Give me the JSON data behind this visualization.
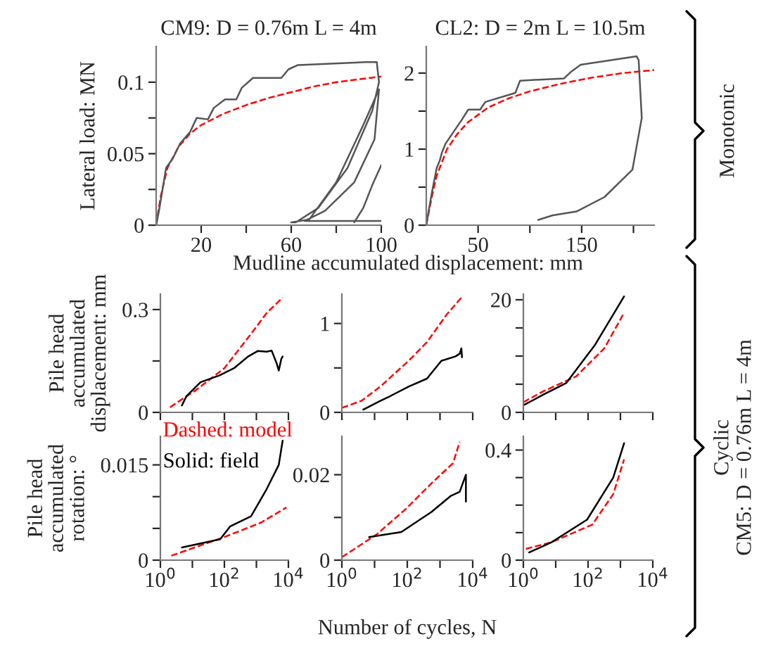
{
  "chart_data": [
    {
      "type": "line",
      "title": "CM9: D = 0.76m L = 4m",
      "xlabel": "Mudline accumulated displacement: mm",
      "ylabel": "Lateral load: MN",
      "xlim": [
        0,
        100
      ],
      "xticks": [
        {
          "value": 20,
          "label": "20"
        },
        {
          "value": 40,
          "label": null
        },
        {
          "value": 60,
          "label": "60"
        },
        {
          "value": 80,
          "label": null
        },
        {
          "value": 100,
          "label": "100"
        }
      ],
      "ylim": [
        0,
        0.125
      ],
      "yticks": [
        0,
        {
          "value": 0.025,
          "label": null
        },
        0.05,
        {
          "value": 0.075,
          "label": null
        },
        0.1
      ],
      "grid": false,
      "legend": false,
      "series": [
        {
          "color": "#ff0000",
          "line_style": "dashed",
          "x": [
            0,
            2,
            5,
            10,
            15,
            20,
            30,
            40,
            50,
            60,
            70,
            80,
            90,
            100
          ],
          "values": [
            0,
            0.02,
            0.04,
            0.055,
            0.064,
            0.07,
            0.078,
            0.084,
            0.089,
            0.093,
            0.097,
            0.1,
            0.102,
            0.104
          ]
        },
        {
          "color": "#555555",
          "line_style": "solid",
          "x": [
            0,
            1.25,
            4.4,
            7.5,
            10.6,
            15,
            18,
            23,
            25.6,
            30.6,
            35.6,
            38,
            43,
            55.6,
            58.8,
            63,
            93,
            98,
            99,
            96,
            85,
            72,
            62,
            60,
            68,
            80,
            92,
            99,
            97,
            88,
            75,
            66,
            100
          ],
          "values": [
            0,
            0.01,
            0.04,
            0.047,
            0.057,
            0.065,
            0.075,
            0.074,
            0.082,
            0.088,
            0.088,
            0.096,
            0.103,
            0.103,
            0.109,
            0.112,
            0.114,
            0.114,
            0.1,
            0.08,
            0.04,
            0.012,
            0.002,
            0.002,
            0.004,
            0.03,
            0.07,
            0.095,
            0.06,
            0.03,
            0.01,
            0.003,
            0.003
          ]
        },
        {
          "color": "#555555",
          "line_style": "solid",
          "x": [
            88,
            92,
            96,
            100
          ],
          "values": [
            0.002,
            0.012,
            0.028,
            0.042
          ]
        }
      ]
    },
    {
      "type": "line",
      "title": "CL2: D = 2m L = 10.5m",
      "xlim": [
        0,
        220
      ],
      "xticks": [
        {
          "value": 50,
          "label": "50"
        },
        {
          "value": 100,
          "label": null
        },
        {
          "value": 150,
          "label": "150"
        },
        {
          "value": 200,
          "label": null
        }
      ],
      "ylim": [
        0,
        2.35
      ],
      "yticks": [
        0,
        {
          "value": 0.5,
          "label": null
        },
        1,
        {
          "value": 1.5,
          "label": null
        },
        2
      ],
      "grid": false,
      "legend": false,
      "annotations": [
        "Monotonic"
      ],
      "series": [
        {
          "color": "#ff0000",
          "line_style": "dashed",
          "x": [
            0,
            5,
            10,
            20,
            30,
            40,
            60,
            80,
            100,
            130,
            160,
            190,
            220
          ],
          "values": [
            0,
            0.35,
            0.65,
            1.0,
            1.2,
            1.35,
            1.55,
            1.67,
            1.76,
            1.86,
            1.94,
            2.0,
            2.04
          ]
        },
        {
          "color": "#555555",
          "line_style": "solid",
          "x": [
            0,
            5,
            10,
            13,
            15,
            18.5,
            23,
            27.5,
            34,
            40.5,
            52,
            57,
            86,
            90.5,
            133,
            140,
            149,
            203,
            205,
            208,
            199,
            172,
            145,
            122,
            108
          ],
          "values": [
            0,
            0.4,
            0.75,
            0.85,
            0.95,
            1.07,
            1.16,
            1.25,
            1.38,
            1.52,
            1.52,
            1.62,
            1.74,
            1.9,
            1.93,
            2.02,
            2.11,
            2.22,
            2.17,
            1.41,
            0.73,
            0.37,
            0.18,
            0.13,
            0.07
          ]
        }
      ]
    },
    {
      "type": "line",
      "ylabel": "Pile head\naccumulated\ndisplacement: mm",
      "log": "x",
      "xlim": [
        1,
        10000
      ],
      "xticks": [
        {
          "value": 1,
          "label": null
        },
        {
          "value": 10,
          "label": null
        },
        {
          "value": 100,
          "label": null
        },
        {
          "value": 1000,
          "label": null
        },
        {
          "value": 10000,
          "label": null
        }
      ],
      "ylim": [
        0,
        0.345
      ],
      "yticks": [
        0,
        {
          "value": 0.15,
          "label": null
        },
        0.3
      ],
      "tick_labels": "y",
      "grid": false,
      "legend": false,
      "series": [
        {
          "color": "#ff0000",
          "line_style": "dashed",
          "x": [
            2,
            13,
            100,
            550,
            2100,
            6600
          ],
          "values": [
            0.015,
            0.065,
            0.129,
            0.218,
            0.29,
            0.335
          ]
        },
        {
          "color": "#000000",
          "line_style": "solid",
          "x": [
            4.7,
            6.5,
            18,
            71,
            200,
            550,
            1100,
            2100,
            3000,
            4300,
            5000,
            6000,
            6600
          ],
          "values": [
            0.02,
            0.047,
            0.088,
            0.108,
            0.129,
            0.163,
            0.179,
            0.177,
            0.18,
            0.143,
            0.122,
            0.156,
            0.163
          ]
        }
      ]
    },
    {
      "type": "line",
      "log": "x",
      "xlim": [
        1,
        10000
      ],
      "xticks": [
        {
          "value": 1,
          "label": null
        },
        {
          "value": 10,
          "label": null
        },
        {
          "value": 100,
          "label": null
        },
        {
          "value": 1000,
          "label": null
        },
        {
          "value": 10000,
          "label": null
        }
      ],
      "ylim": [
        0,
        1.33
      ],
      "yticks": [
        0,
        {
          "value": 0.5,
          "label": null
        },
        1
      ],
      "tick_labels": "y",
      "grid": false,
      "legend": false,
      "series": [
        {
          "color": "#ff0000",
          "line_style": "dashed",
          "x": [
            1,
            4,
            15,
            110,
            400,
            1600,
            5000
          ],
          "values": [
            0.05,
            0.13,
            0.29,
            0.58,
            0.79,
            1.1,
            1.31
          ]
        },
        {
          "color": "#000000",
          "line_style": "solid",
          "x": [
            4.5,
            15,
            29,
            110,
            400,
            1100,
            3000,
            4000,
            4500,
            4700
          ],
          "values": [
            0.03,
            0.13,
            0.18,
            0.29,
            0.38,
            0.58,
            0.63,
            0.66,
            0.72,
            0.62
          ]
        }
      ]
    },
    {
      "type": "line",
      "log": "x",
      "xlim": [
        1,
        10000
      ],
      "xticks": [
        {
          "value": 1,
          "label": null
        },
        {
          "value": 10,
          "label": null
        },
        {
          "value": 100,
          "label": null
        },
        {
          "value": 1000,
          "label": null
        },
        {
          "value": 10000,
          "label": null
        }
      ],
      "ylim": [
        0,
        21
      ],
      "yticks": [
        0,
        {
          "value": 5,
          "label": null
        },
        {
          "value": 10,
          "label": null
        },
        {
          "value": 15,
          "label": null
        },
        20
      ],
      "tick_labels": "y",
      "grid": false,
      "legend": false,
      "annotations": [
        "Cyclic\nCM5: D = 0.76m L = 4m"
      ],
      "series": [
        {
          "color": "#ff0000",
          "line_style": "dashed",
          "x": [
            1,
            4,
            43,
            320,
            1300
          ],
          "values": [
            1.8,
            3.7,
            6.4,
            11.4,
            17.7
          ]
        },
        {
          "color": "#000000",
          "line_style": "solid",
          "x": [
            1,
            4,
            21,
            160,
            1300
          ],
          "values": [
            1.25,
            3.1,
            5.2,
            11.9,
            20.6
          ]
        }
      ]
    },
    {
      "type": "line",
      "ylabel": "Pile head\naccumulated\nrotation: °",
      "log": "x",
      "xlim": [
        1,
        10000
      ],
      "xticks": [
        {
          "value": 1,
          "label": "10$^{0}$"
        },
        {
          "value": 10,
          "label": null
        },
        {
          "value": 100,
          "label": "10$^{2}$"
        },
        {
          "value": 1000,
          "label": null
        },
        {
          "value": 10000,
          "label": "10$^{4}$"
        }
      ],
      "ylim": [
        0,
        0.0195
      ],
      "yticks": [
        0,
        {
          "value": 0.005,
          "label": null
        },
        {
          "value": 0.01,
          "label": null
        },
        0.015
      ],
      "grid": false,
      "legend": false,
      "annotations": [
        "Dashed: model",
        "Solid: field"
      ],
      "series": [
        {
          "color": "#ff0000",
          "line_style": "dashed",
          "x": [
            2.2,
            107,
            1380,
            8700
          ],
          "values": [
            0.0007,
            0.0037,
            0.0059,
            0.0083
          ]
        },
        {
          "color": "#000000",
          "line_style": "solid",
          "x": [
            4.7,
            74,
            150,
            680,
            2000,
            5000,
            6600
          ],
          "values": [
            0.002,
            0.0033,
            0.0053,
            0.0069,
            0.011,
            0.015,
            0.0188
          ]
        }
      ]
    },
    {
      "type": "line",
      "xlabel": "Number of cycles, N",
      "log": "x",
      "xlim": [
        1,
        10000
      ],
      "xticks": [
        {
          "value": 1,
          "label": "10$^{0}$"
        },
        {
          "value": 10,
          "label": null
        },
        {
          "value": 100,
          "label": "10$^{2}$"
        },
        {
          "value": 1000,
          "label": null
        },
        {
          "value": 10000,
          "label": "10$^{4}$"
        }
      ],
      "ylim": [
        0,
        0.029
      ],
      "yticks": [
        0,
        {
          "value": 0.01,
          "label": null
        },
        0.02
      ],
      "grid": false,
      "legend": false,
      "series": [
        {
          "color": "#ff0000",
          "line_style": "dashed",
          "x": [
            1,
            11.5,
            91,
            550,
            2500,
            4000
          ],
          "values": [
            0.0007,
            0.006,
            0.012,
            0.018,
            0.0227,
            0.0277
          ]
        },
        {
          "color": "#000000",
          "line_style": "solid",
          "x": [
            6.8,
            66,
            550,
            2100,
            4000,
            6200,
            6200
          ],
          "values": [
            0.0054,
            0.0066,
            0.0113,
            0.015,
            0.016,
            0.02,
            0.0137
          ]
        }
      ]
    },
    {
      "type": "line",
      "log": "x",
      "xlim": [
        1,
        10000
      ],
      "xticks": [
        {
          "value": 1,
          "label": "10$^{0}$"
        },
        {
          "value": 10,
          "label": null
        },
        {
          "value": 100,
          "label": "10$^{2}$"
        },
        {
          "value": 1000,
          "label": null
        },
        {
          "value": 10000,
          "label": "10$^{4}$"
        }
      ],
      "ylim": [
        0,
        0.45
      ],
      "yticks": [
        0,
        {
          "value": 0.1,
          "label": null
        },
        {
          "value": 0.2,
          "label": null
        },
        {
          "value": 0.3,
          "label": null
        },
        0.4
      ],
      "grid": false,
      "legend": false,
      "series": [
        {
          "color": "#ff0000",
          "line_style": "dashed",
          "x": [
            1.2,
            7.4,
            135,
            600,
            1300
          ],
          "values": [
            0.041,
            0.065,
            0.129,
            0.24,
            0.366
          ]
        },
        {
          "color": "#000000",
          "line_style": "solid",
          "x": [
            1.5,
            7.4,
            93,
            600,
            1300
          ],
          "values": [
            0.028,
            0.065,
            0.147,
            0.3,
            0.425
          ]
        }
      ]
    }
  ]
}
